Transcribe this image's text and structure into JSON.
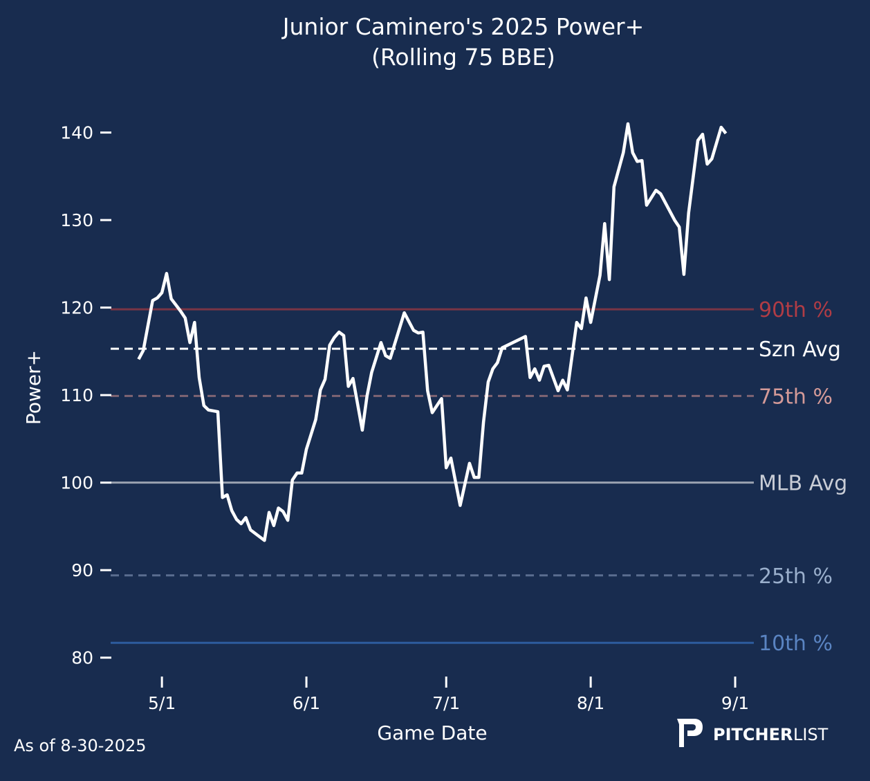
{
  "chart_data": {
    "type": "line",
    "title": "Junior Caminero's 2025 Power+",
    "subtitle": "(Rolling 75 BBE)",
    "xlabel": "Game Date",
    "ylabel": "Power+",
    "xlim": [
      "2025-04-20",
      "2025-09-05"
    ],
    "ylim": [
      78,
      144
    ],
    "grid": false,
    "yticks": [
      80,
      90,
      100,
      110,
      120,
      130,
      140
    ],
    "xticks": [
      {
        "date": "2025-05-01",
        "label": "5/1"
      },
      {
        "date": "2025-06-01",
        "label": "6/1"
      },
      {
        "date": "2025-07-01",
        "label": "7/1"
      },
      {
        "date": "2025-08-01",
        "label": "8/1"
      },
      {
        "date": "2025-09-01",
        "label": "9/1"
      }
    ],
    "reference_lines": [
      {
        "label": "90th %",
        "value": 119.8,
        "style": "solid",
        "line_color": "#7a3545",
        "text_color": "#b03c45"
      },
      {
        "label": "Szn Avg",
        "value": 115.3,
        "style": "dashed",
        "line_color": "#ffffff",
        "text_color": "#ffffff"
      },
      {
        "label": "75th %",
        "value": 109.9,
        "style": "dashed",
        "line_color": "#7f6473",
        "text_color": "#d49a98"
      },
      {
        "label": "MLB Avg",
        "value": 100,
        "style": "solid",
        "line_color": "#9aa2b1",
        "text_color": "#c9cdd6"
      },
      {
        "label": "25th %",
        "value": 89.4,
        "style": "dashed",
        "line_color": "#5a6d8f",
        "text_color": "#9aafcc"
      },
      {
        "label": "10th %",
        "value": 81.7,
        "style": "solid",
        "line_color": "#2d5c9e",
        "text_color": "#5a84c2"
      }
    ],
    "series": [
      {
        "name": "Power+",
        "color": "#ffffff",
        "x": [
          "2025-04-26",
          "2025-04-27",
          "2025-04-29",
          "2025-04-30",
          "2025-05-01",
          "2025-05-02",
          "2025-05-03",
          "2025-05-05",
          "2025-05-06",
          "2025-05-07",
          "2025-05-08",
          "2025-05-09",
          "2025-05-10",
          "2025-05-11",
          "2025-05-13",
          "2025-05-14",
          "2025-05-15",
          "2025-05-16",
          "2025-05-17",
          "2025-05-18",
          "2025-05-19",
          "2025-05-20",
          "2025-05-23",
          "2025-05-24",
          "2025-05-25",
          "2025-05-26",
          "2025-05-27",
          "2025-05-28",
          "2025-05-29",
          "2025-05-30",
          "2025-05-31",
          "2025-06-01",
          "2025-06-03",
          "2025-06-04",
          "2025-06-05",
          "2025-06-06",
          "2025-06-07",
          "2025-06-08",
          "2025-06-09",
          "2025-06-10",
          "2025-06-11",
          "2025-06-13",
          "2025-06-14",
          "2025-06-15",
          "2025-06-17",
          "2025-06-18",
          "2025-06-19",
          "2025-06-22",
          "2025-06-24",
          "2025-06-25",
          "2025-06-26",
          "2025-06-27",
          "2025-06-28",
          "2025-06-30",
          "2025-07-01",
          "2025-07-02",
          "2025-07-04",
          "2025-07-06",
          "2025-07-07",
          "2025-07-08",
          "2025-07-09",
          "2025-07-10",
          "2025-07-11",
          "2025-07-12",
          "2025-07-13",
          "2025-07-18",
          "2025-07-19",
          "2025-07-20",
          "2025-07-21",
          "2025-07-22",
          "2025-07-23",
          "2025-07-25",
          "2025-07-26",
          "2025-07-27",
          "2025-07-29",
          "2025-07-30",
          "2025-07-31",
          "2025-08-01",
          "2025-08-03",
          "2025-08-04",
          "2025-08-05",
          "2025-08-06",
          "2025-08-08",
          "2025-08-09",
          "2025-08-10",
          "2025-08-11",
          "2025-08-12",
          "2025-08-13",
          "2025-08-15",
          "2025-08-16",
          "2025-08-19",
          "2025-08-20",
          "2025-08-21",
          "2025-08-22",
          "2025-08-24",
          "2025-08-25",
          "2025-08-26",
          "2025-08-27",
          "2025-08-29",
          "2025-08-30"
        ],
        "values": [
          114.1,
          115.1,
          120.8,
          121.1,
          121.7,
          123.9,
          121.0,
          119.6,
          118.8,
          116.0,
          118.3,
          112.0,
          108.8,
          108.3,
          108.1,
          98.3,
          98.6,
          96.8,
          95.8,
          95.3,
          96.0,
          94.6,
          93.4,
          96.6,
          95.1,
          97.1,
          96.7,
          95.7,
          100.3,
          101.1,
          101.1,
          103.8,
          107.2,
          110.6,
          111.8,
          115.7,
          116.6,
          117.2,
          116.8,
          111.0,
          111.9,
          106.0,
          109.9,
          112.6,
          116.0,
          114.5,
          114.2,
          119.4,
          117.4,
          117.1,
          117.2,
          110.5,
          108.0,
          109.6,
          101.7,
          102.8,
          97.4,
          102.2,
          100.6,
          100.6,
          106.9,
          111.5,
          113.0,
          113.7,
          115.4,
          116.7,
          112.0,
          113.0,
          111.7,
          113.3,
          113.4,
          110.5,
          111.7,
          110.6,
          118.3,
          117.6,
          121.1,
          118.3,
          123.7,
          129.6,
          123.2,
          133.8,
          137.7,
          141.0,
          137.7,
          136.7,
          136.8,
          131.7,
          133.4,
          133.0,
          130.0,
          129.2,
          123.8,
          130.8,
          139.1,
          139.8,
          136.4,
          137.0,
          140.6,
          139.9
        ]
      }
    ]
  },
  "footer": {
    "as_of": "As of 8-30-2025",
    "logo_text_bold": "PITCHER",
    "logo_text_light": "LIST"
  }
}
